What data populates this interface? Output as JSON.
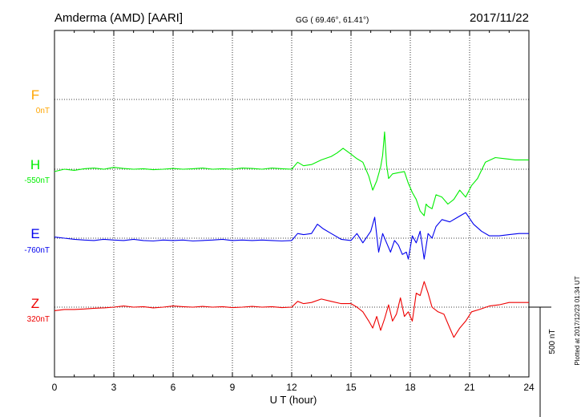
{
  "header": {
    "station": "Amderma (AMD)  [AARI]",
    "coords": "GG ( 69.46°,  61.41°)",
    "date": "2017/11/22"
  },
  "chart_data": {
    "type": "line",
    "xlabel": "U T (hour)",
    "xlim": [
      0,
      24
    ],
    "x_ticks": [
      0,
      3,
      6,
      9,
      12,
      15,
      18,
      21,
      24
    ],
    "x_tick_labels": [
      "0",
      "3",
      "6",
      "9",
      "12",
      "15",
      "18",
      "21",
      "24"
    ],
    "grid": true,
    "scale_bar": {
      "label": "500 nT",
      "value_nT": 500
    },
    "nT_per_baseline_gap": 300,
    "plotted_note": "Plotted at 2017/12/23 01:34 UT",
    "series": [
      {
        "name": "F",
        "baseline_label": "0nT",
        "color": "#ffa500",
        "has_data": false,
        "x": [],
        "y": []
      },
      {
        "name": "H",
        "baseline_label": "-550nT",
        "color": "#00ee00",
        "has_data": true,
        "x": [
          0,
          0.5,
          1,
          1.5,
          2,
          2.5,
          3,
          3.5,
          4,
          4.5,
          5,
          5.5,
          6,
          6.5,
          7,
          7.5,
          8,
          8.5,
          9,
          9.5,
          10,
          10.5,
          11,
          11.5,
          12,
          12.3,
          12.6,
          13,
          13.5,
          14,
          14.3,
          14.6,
          15,
          15.3,
          15.6,
          15.9,
          16.1,
          16.3,
          16.5,
          16.6,
          16.7,
          16.8,
          16.9,
          17.1,
          17.4,
          17.7,
          17.9,
          18.1,
          18.3,
          18.5,
          18.7,
          18.8,
          18.9,
          19.1,
          19.3,
          19.6,
          19.9,
          20.2,
          20.5,
          20.8,
          21.1,
          21.4,
          21.8,
          22.3,
          22.8,
          23.3,
          24
        ],
        "y": [
          -10,
          0,
          -5,
          2,
          5,
          0,
          8,
          3,
          0,
          2,
          -2,
          0,
          3,
          0,
          2,
          5,
          0,
          2,
          0,
          5,
          3,
          0,
          5,
          2,
          0,
          30,
          15,
          20,
          40,
          55,
          70,
          90,
          65,
          45,
          30,
          -30,
          -90,
          -50,
          10,
          60,
          160,
          20,
          -40,
          -20,
          -15,
          -10,
          -60,
          -100,
          -130,
          -180,
          -200,
          -150,
          -160,
          -170,
          -110,
          -120,
          -150,
          -130,
          -90,
          -120,
          -70,
          -40,
          30,
          50,
          45,
          40,
          40
        ]
      },
      {
        "name": "E",
        "baseline_label": "-760nT",
        "color": "#0000ee",
        "has_data": true,
        "x": [
          0,
          0.5,
          1,
          1.5,
          2,
          2.5,
          3,
          3.5,
          4,
          4.5,
          5,
          5.5,
          6,
          6.5,
          7,
          7.5,
          8,
          8.5,
          9,
          9.5,
          10,
          10.5,
          11,
          11.5,
          12,
          12.3,
          12.6,
          13,
          13.3,
          13.6,
          14,
          14.5,
          15,
          15.3,
          15.6,
          16,
          16.2,
          16.4,
          16.6,
          16.8,
          17,
          17.2,
          17.4,
          17.6,
          17.8,
          17.9,
          18.1,
          18.3,
          18.5,
          18.7,
          18.9,
          19.1,
          19.3,
          19.6,
          20,
          20.4,
          20.8,
          21.2,
          21.6,
          22,
          22.5,
          23,
          23.5,
          24
        ],
        "y": [
          5,
          0,
          -5,
          -8,
          -10,
          -5,
          -8,
          -10,
          -5,
          -10,
          -12,
          -8,
          -10,
          -8,
          -12,
          -10,
          -8,
          -5,
          -10,
          -8,
          -10,
          -8,
          -10,
          -12,
          -10,
          20,
          15,
          20,
          60,
          40,
          20,
          -5,
          -10,
          20,
          -20,
          30,
          90,
          -60,
          20,
          -20,
          -60,
          -10,
          -30,
          -70,
          -60,
          -90,
          10,
          -20,
          30,
          -90,
          20,
          0,
          50,
          80,
          70,
          90,
          110,
          60,
          30,
          10,
          10,
          15,
          20,
          20
        ]
      },
      {
        "name": "Z",
        "baseline_label": "320nT",
        "color": "#ee0000",
        "has_data": true,
        "x": [
          0,
          0.5,
          1,
          1.5,
          2,
          2.5,
          3,
          3.5,
          4,
          4.5,
          5,
          5.5,
          6,
          6.5,
          7,
          7.5,
          8,
          8.5,
          9,
          9.5,
          10,
          10.5,
          11,
          11.5,
          12,
          12.3,
          12.6,
          13,
          13.5,
          14,
          14.5,
          15,
          15.3,
          15.6,
          15.9,
          16.1,
          16.3,
          16.5,
          16.7,
          16.9,
          17.1,
          17.3,
          17.5,
          17.7,
          17.9,
          18.1,
          18.3,
          18.5,
          18.7,
          18.9,
          19.1,
          19.4,
          19.7,
          20,
          20.2,
          20.5,
          20.8,
          21.1,
          21.5,
          22,
          22.5,
          23,
          24
        ],
        "y": [
          -15,
          -10,
          -10,
          -8,
          -5,
          -3,
          0,
          5,
          0,
          2,
          -3,
          0,
          5,
          2,
          0,
          3,
          0,
          2,
          -2,
          0,
          3,
          0,
          2,
          -2,
          0,
          25,
          15,
          20,
          35,
          25,
          15,
          15,
          0,
          -20,
          -60,
          -90,
          -40,
          -100,
          -50,
          10,
          -60,
          -30,
          40,
          -40,
          -20,
          -60,
          60,
          50,
          110,
          60,
          0,
          -20,
          -30,
          -90,
          -130,
          -90,
          -60,
          -20,
          -10,
          5,
          10,
          20,
          20
        ]
      }
    ]
  }
}
